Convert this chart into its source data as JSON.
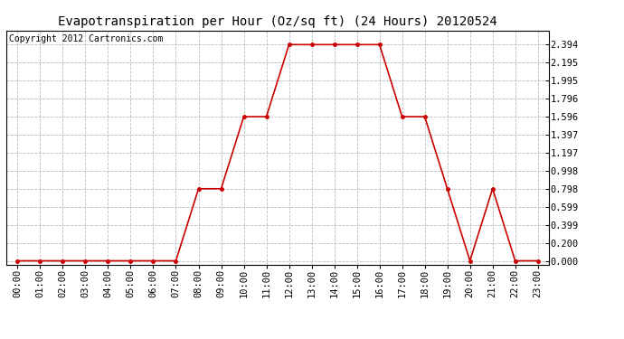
{
  "title": "Evapotranspiration per Hour (Oz/sq ft) (24 Hours) 20120524",
  "copyright": "Copyright 2012 Cartronics.com",
  "hours": [
    "00:00",
    "01:00",
    "02:00",
    "03:00",
    "04:00",
    "05:00",
    "06:00",
    "07:00",
    "08:00",
    "09:00",
    "10:00",
    "11:00",
    "12:00",
    "13:00",
    "14:00",
    "15:00",
    "16:00",
    "17:00",
    "18:00",
    "19:00",
    "20:00",
    "21:00",
    "22:00",
    "23:00"
  ],
  "values": [
    0.0,
    0.0,
    0.0,
    0.0,
    0.0,
    0.0,
    0.0,
    0.0,
    0.798,
    0.798,
    1.596,
    1.596,
    2.394,
    2.394,
    2.394,
    2.394,
    2.394,
    1.596,
    1.596,
    0.798,
    0.0,
    0.798,
    0.0,
    0.0
  ],
  "yticks": [
    0.0,
    0.2,
    0.399,
    0.599,
    0.798,
    0.998,
    1.197,
    1.397,
    1.596,
    1.796,
    1.995,
    2.195,
    2.394
  ],
  "ytick_labels": [
    "0.000",
    "0.200",
    "0.399",
    "0.599",
    "0.798",
    "0.998",
    "1.197",
    "1.397",
    "1.596",
    "1.796",
    "1.995",
    "2.195",
    "2.394"
  ],
  "line_color": "#cc0000",
  "marker": "o",
  "marker_size": 2.5,
  "bg_color": "#ffffff",
  "plot_bg_color": "#ffffff",
  "grid_color": "#bbbbbb",
  "title_fontsize": 10,
  "copyright_fontsize": 7,
  "tick_fontsize": 7.5,
  "ylim": [
    -0.04,
    2.55
  ]
}
